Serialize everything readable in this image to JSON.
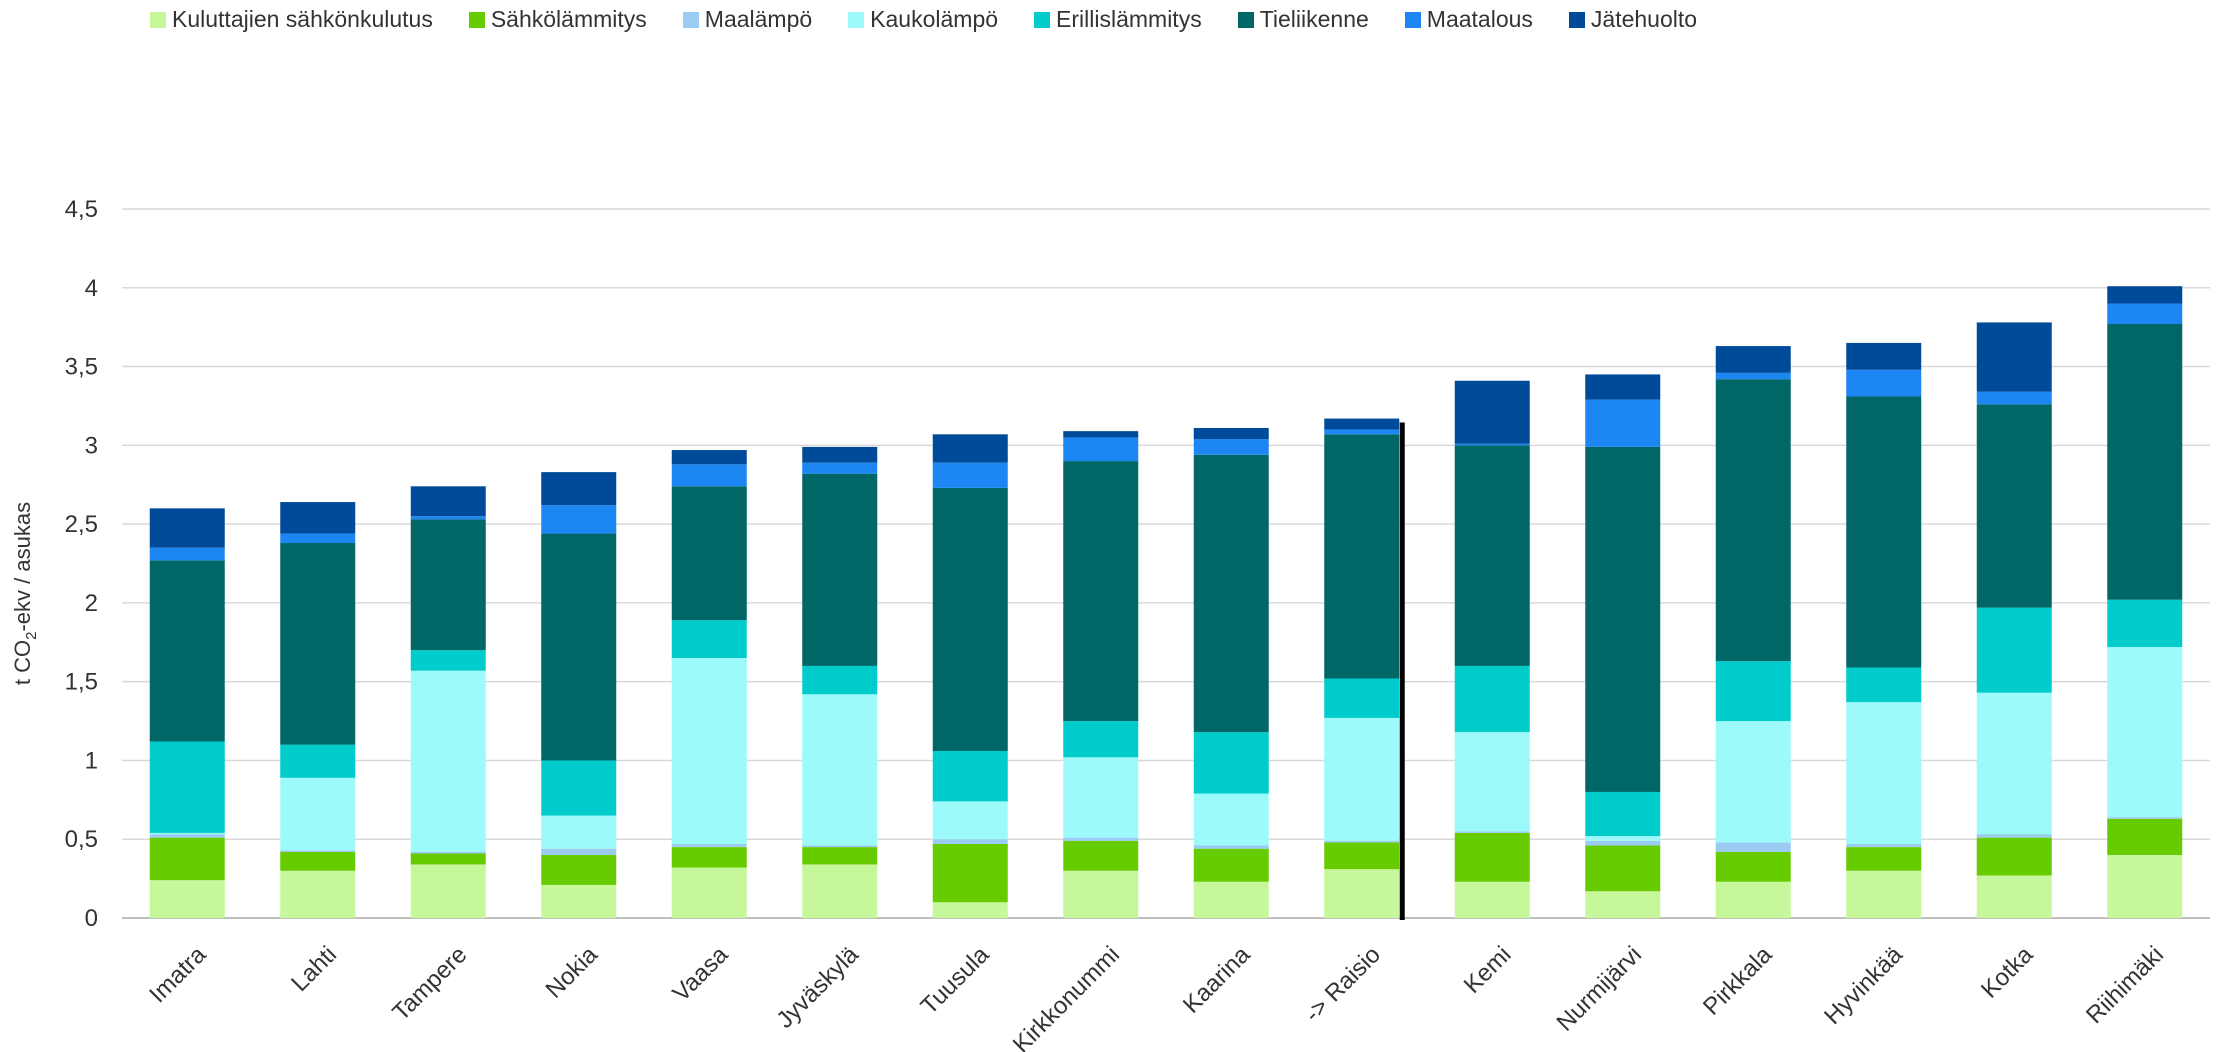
{
  "chart_data": {
    "type": "bar",
    "stacked": true,
    "ylabel": "t CO2-ekv / asukas",
    "ylabel_main": "t CO",
    "ylabel_sub": "2",
    "ylabel_rest": "-ekv / asukas",
    "ylim": [
      0,
      4.5
    ],
    "yticks": [
      "0",
      "0,5",
      "1",
      "1,5",
      "2",
      "2,5",
      "3",
      "3,5",
      "4",
      "4,5"
    ],
    "grid": true,
    "legend_position": "top",
    "categories": [
      "Imatra",
      "Lahti",
      "Tampere",
      "Nokia",
      "Vaasa",
      "Jyväskylä",
      "Tuusula",
      "Kirkkonummi",
      "Kaarina",
      "->  Raisio",
      "Kemi",
      "Nurmijärvi",
      "Pirkkala",
      "Hyvinkää",
      "Kotka",
      "Riihimäki"
    ],
    "highlight_category": "->  Raisio",
    "series": [
      {
        "name": "Kuluttajien sähkönkulutus",
        "color": "#c6f79a",
        "values": [
          0.24,
          0.3,
          0.34,
          0.21,
          0.32,
          0.34,
          0.1,
          0.3,
          0.23,
          0.31,
          0.23,
          0.17,
          0.23,
          0.3,
          0.27,
          0.4
        ]
      },
      {
        "name": "Sähkölämmitys",
        "color": "#66cc00",
        "values": [
          0.27,
          0.12,
          0.07,
          0.19,
          0.13,
          0.11,
          0.37,
          0.19,
          0.21,
          0.17,
          0.31,
          0.29,
          0.19,
          0.15,
          0.24,
          0.23
        ]
      },
      {
        "name": "Maalämpö",
        "color": "#9bcbf2",
        "values": [
          0.02,
          0.01,
          0.01,
          0.04,
          0.02,
          0.01,
          0.03,
          0.02,
          0.02,
          0.01,
          0.01,
          0.03,
          0.06,
          0.02,
          0.02,
          0.01
        ]
      },
      {
        "name": "Kaukolämpö",
        "color": "#9dfafa",
        "values": [
          0.01,
          0.46,
          1.15,
          0.21,
          1.18,
          0.96,
          0.24,
          0.51,
          0.33,
          0.78,
          0.63,
          0.03,
          0.77,
          0.9,
          0.9,
          1.08
        ]
      },
      {
        "name": "Erillislämmitys",
        "color": "#00cccc",
        "values": [
          0.58,
          0.21,
          0.13,
          0.35,
          0.24,
          0.18,
          0.32,
          0.23,
          0.39,
          0.25,
          0.42,
          0.28,
          0.38,
          0.22,
          0.54,
          0.3
        ]
      },
      {
        "name": "Tieliikenne",
        "color": "#006666",
        "values": [
          1.15,
          1.28,
          0.83,
          1.44,
          0.85,
          1.22,
          1.67,
          1.65,
          1.76,
          1.55,
          1.4,
          2.19,
          1.79,
          1.72,
          1.29,
          1.75
        ]
      },
      {
        "name": "Maatalous",
        "color": "#1c86f2",
        "values": [
          0.08,
          0.06,
          0.02,
          0.18,
          0.14,
          0.07,
          0.16,
          0.15,
          0.1,
          0.03,
          0.01,
          0.3,
          0.04,
          0.17,
          0.08,
          0.13
        ]
      },
      {
        "name": "Jätehuolto",
        "color": "#004b99",
        "values": [
          0.25,
          0.2,
          0.19,
          0.21,
          0.09,
          0.1,
          0.18,
          0.04,
          0.07,
          0.07,
          0.4,
          0.16,
          0.17,
          0.17,
          0.44,
          0.11
        ]
      }
    ]
  }
}
